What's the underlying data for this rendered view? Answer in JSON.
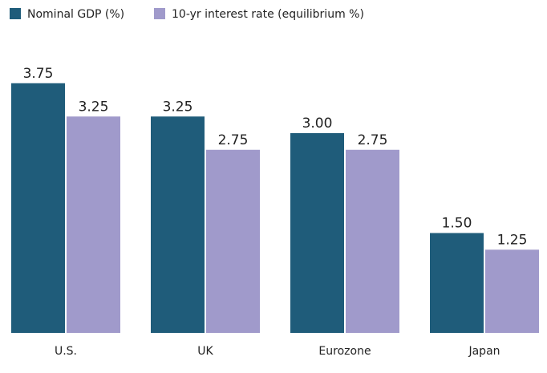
{
  "chart_data": {
    "type": "bar",
    "categories": [
      "U.S.",
      "UK",
      "Eurozone",
      "Japan"
    ],
    "series": [
      {
        "name": "Nominal GDP (%)",
        "color": "#1f5c7a",
        "values": [
          3.75,
          3.25,
          3.0,
          1.5
        ],
        "value_labels": [
          "3.75",
          "3.25",
          "3.00",
          "1.50"
        ]
      },
      {
        "name": "10-yr interest rate (equilibrium %)",
        "color": "#a09acb",
        "values": [
          3.25,
          2.75,
          2.75,
          1.25
        ],
        "value_labels": [
          "3.25",
          "2.75",
          "2.75",
          "1.25"
        ]
      }
    ]
  }
}
